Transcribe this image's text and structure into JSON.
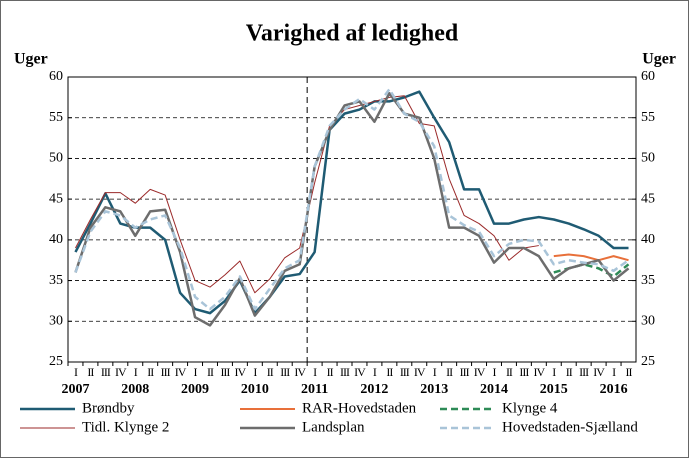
{
  "chart_data": {
    "type": "line",
    "title": "Varighed af ledighed",
    "y_label": "Uger",
    "y2_label": "Uger",
    "categories": [
      "I",
      "II",
      "III",
      "IV",
      "I",
      "II",
      "III",
      "IV",
      "I",
      "II",
      "III",
      "IV",
      "I",
      "II",
      "III",
      "IV",
      "I",
      "II",
      "III",
      "IV",
      "I",
      "II",
      "III",
      "IV",
      "I",
      "II",
      "III",
      "IV",
      "I",
      "II",
      "III",
      "IV",
      "I",
      "II",
      "III",
      "IV",
      "I",
      "II"
    ],
    "years": [
      "2007",
      "2008",
      "2009",
      "2010",
      "2011",
      "2012",
      "2013",
      "2014",
      "2015",
      "2016"
    ],
    "vline_category_index": 16,
    "ylim": [
      25,
      60
    ],
    "yticks": [
      25,
      30,
      35,
      40,
      45,
      50,
      55,
      60
    ],
    "y2lim": [
      25,
      60
    ],
    "y2ticks": [
      25,
      30,
      35,
      40,
      45,
      50,
      55,
      60
    ],
    "grid": true,
    "legend": "bottom",
    "series": [
      {
        "name": "Brøndby",
        "color": "#1f5b73",
        "dash": "solid",
        "width": 2.5,
        "values": [
          38.5,
          42,
          45.7,
          42,
          41.5,
          41.5,
          40,
          33.5,
          31.5,
          31,
          32.5,
          35,
          31,
          33,
          35.5,
          35.8,
          38.5,
          53.5,
          55.5,
          56,
          57,
          57,
          57.5,
          58.2,
          55,
          52,
          46.2,
          46.2,
          42,
          42,
          42.5,
          42.8,
          42.5,
          42,
          41.3,
          40.5,
          39,
          39
        ]
      },
      {
        "name": "RAR-Hovedstaden",
        "color": "#e8703a",
        "dash": "solid",
        "width": 2,
        "values": [
          null,
          null,
          null,
          null,
          null,
          null,
          null,
          null,
          null,
          null,
          null,
          null,
          null,
          null,
          null,
          null,
          null,
          null,
          null,
          null,
          null,
          null,
          null,
          null,
          null,
          null,
          null,
          null,
          null,
          null,
          null,
          null,
          38,
          38.2,
          38,
          37.5,
          38,
          37.5
        ]
      },
      {
        "name": "Klynge 4",
        "color": "#2e8b57",
        "dash": "dashed",
        "width": 2.5,
        "values": [
          null,
          null,
          null,
          null,
          null,
          null,
          null,
          null,
          null,
          null,
          null,
          null,
          null,
          null,
          null,
          null,
          null,
          null,
          null,
          null,
          null,
          null,
          null,
          null,
          null,
          null,
          null,
          null,
          null,
          null,
          null,
          null,
          36,
          36.5,
          37,
          36.5,
          35.5,
          37
        ]
      },
      {
        "name": "Tidl. Klynge 2",
        "color": "#9b2a2a",
        "dash": "solid",
        "width": 1,
        "values": [
          39,
          42.5,
          45.8,
          45.8,
          44.5,
          46.2,
          45.5,
          40,
          35,
          34.2,
          35.7,
          37.4,
          33.5,
          35.2,
          37.8,
          39,
          47,
          54,
          56,
          56.5,
          57,
          57.5,
          57.7,
          54.3,
          54,
          47.5,
          43,
          42,
          40.5,
          37.5,
          39,
          39.3,
          null,
          null,
          null,
          null,
          null,
          null
        ]
      },
      {
        "name": "Landsplan",
        "color": "#6d6d6d",
        "dash": "solid",
        "width": 2.5,
        "values": [
          36,
          41.5,
          44,
          43.5,
          40.5,
          43.5,
          43.7,
          38.5,
          30.5,
          29.5,
          32,
          35.3,
          30.7,
          33,
          36.2,
          37,
          49,
          53.5,
          56.5,
          57,
          54.5,
          58,
          55.5,
          55,
          50,
          41.5,
          41.5,
          40.5,
          37.2,
          39,
          39,
          38,
          35.2,
          36.5,
          37,
          37.5,
          35,
          36.5
        ]
      },
      {
        "name": "Hovedstaden-Sjælland",
        "color": "#a9c4d8",
        "dash": "dashed",
        "width": 2.5,
        "values": [
          36,
          41,
          43.5,
          43,
          41.5,
          42.5,
          43,
          39,
          33,
          31.5,
          33,
          35.5,
          31.5,
          34,
          36.5,
          37.5,
          49,
          54,
          56,
          57.3,
          56,
          58.5,
          55.5,
          54.5,
          51.5,
          43,
          41.8,
          41,
          38,
          39.5,
          40,
          39.8,
          37,
          37.5,
          37.2,
          37,
          36.2,
          37.5
        ]
      }
    ]
  }
}
